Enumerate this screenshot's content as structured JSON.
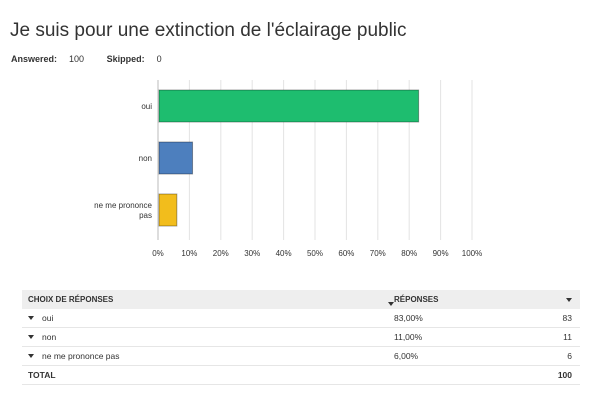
{
  "title": "Je suis pour une extinction de l'éclairage public",
  "stats": {
    "answered_label": "Answered:",
    "answered_value": "100",
    "skipped_label": "Skipped:",
    "skipped_value": "0"
  },
  "chart_data": {
    "type": "bar",
    "orientation": "horizontal",
    "categories": [
      "oui",
      "non",
      "ne me prononce pas"
    ],
    "values": [
      83,
      11,
      6
    ],
    "colors": [
      "#1ebd6f",
      "#4d7fbe",
      "#f2bd1c"
    ],
    "xlim": [
      0,
      100
    ],
    "ticks": [
      "0%",
      "10%",
      "20%",
      "30%",
      "40%",
      "50%",
      "60%",
      "70%",
      "80%",
      "90%",
      "100%"
    ],
    "grid": true
  },
  "table": {
    "headers": {
      "choice": "CHOIX DE RÉPONSES",
      "responses": "RÉPONSES"
    },
    "rows": [
      {
        "label": "oui",
        "percent": "83,00%",
        "count": "83"
      },
      {
        "label": "non",
        "percent": "11,00%",
        "count": "11"
      },
      {
        "label": "ne me prononce pas",
        "percent": "6,00%",
        "count": "6"
      }
    ],
    "total_label": "TOTAL",
    "total_value": "100"
  }
}
